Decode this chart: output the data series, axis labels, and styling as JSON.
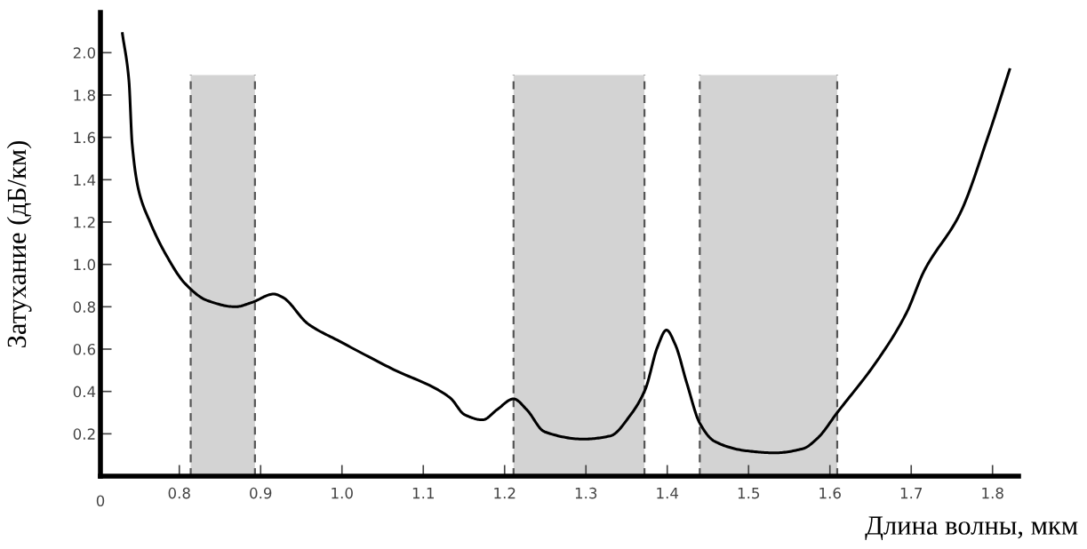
{
  "chart_data": {
    "type": "line",
    "xlabel": "Длина волны, мкм",
    "ylabel": "Затухание (дБ/км)",
    "series": [
      {
        "color": "#000000",
        "x": [
          0.73,
          0.738,
          0.742,
          0.75,
          0.764,
          0.783,
          0.807,
          0.834,
          0.869,
          0.889,
          0.916,
          0.927,
          0.958,
          0.998,
          1.06,
          1.133,
          1.151,
          1.173,
          1.191,
          1.211,
          1.227,
          1.249,
          1.297,
          1.33,
          1.355,
          1.373,
          1.388,
          1.399,
          1.41,
          1.424,
          1.44,
          1.458,
          1.497,
          1.532,
          1.567,
          1.585,
          1.609,
          1.659,
          1.694,
          1.716,
          1.76,
          1.795,
          1.821
        ],
        "values": [
          2.09,
          1.87,
          1.57,
          1.35,
          1.2,
          1.05,
          0.91,
          0.83,
          0.8,
          0.82,
          0.86,
          0.845,
          0.72,
          0.635,
          0.51,
          0.37,
          0.29,
          0.266,
          0.315,
          0.365,
          0.315,
          0.21,
          0.175,
          0.19,
          0.29,
          0.41,
          0.61,
          0.69,
          0.62,
          0.44,
          0.25,
          0.165,
          0.12,
          0.11,
          0.13,
          0.18,
          0.3,
          0.55,
          0.77,
          0.97,
          1.24,
          1.61,
          1.92
        ]
      }
    ],
    "xlim": [
      0.703,
      1.832
    ],
    "xticks": [
      0.8,
      0.9,
      {
        "value": 1.0,
        "label": "1.0"
      },
      1.1,
      1.2,
      1.3,
      1.4,
      1.5,
      1.6,
      1.7,
      1.8
    ],
    "ylim": [
      0,
      2.19
    ],
    "yticks": [
      0.2,
      0.4,
      0.6,
      0.8,
      {
        "value": 1.0,
        "label": "1.0"
      },
      1.2,
      1.4,
      1.6,
      1.8,
      {
        "value": 2.0,
        "label": "2.0"
      }
    ],
    "annotations": [
      "0"
    ],
    "bands": [
      {
        "axis": "x",
        "from": 0.814,
        "to": 0.893,
        "color": "#d3d3d3"
      },
      {
        "axis": "x",
        "from": 1.211,
        "to": 1.372,
        "color": "#d3d3d3"
      },
      {
        "axis": "x",
        "from": 1.44,
        "to": 1.609,
        "color": "#d3d3d3"
      }
    ],
    "ref_lines": [
      {
        "axis": "x",
        "value": 0.814,
        "color": "#555555",
        "line_style": "dashed"
      },
      {
        "axis": "x",
        "value": 0.893,
        "color": "#555555",
        "line_style": "dashed"
      },
      {
        "axis": "x",
        "value": 1.211,
        "color": "#555555",
        "line_style": "dashed"
      },
      {
        "axis": "x",
        "value": 1.372,
        "color": "#555555",
        "line_style": "dashed"
      },
      {
        "axis": "x",
        "value": 1.44,
        "color": "#555555",
        "line_style": "dashed"
      },
      {
        "axis": "x",
        "value": 1.609,
        "color": "#555555",
        "line_style": "dashed"
      }
    ],
    "grid": false,
    "legend": false
  }
}
